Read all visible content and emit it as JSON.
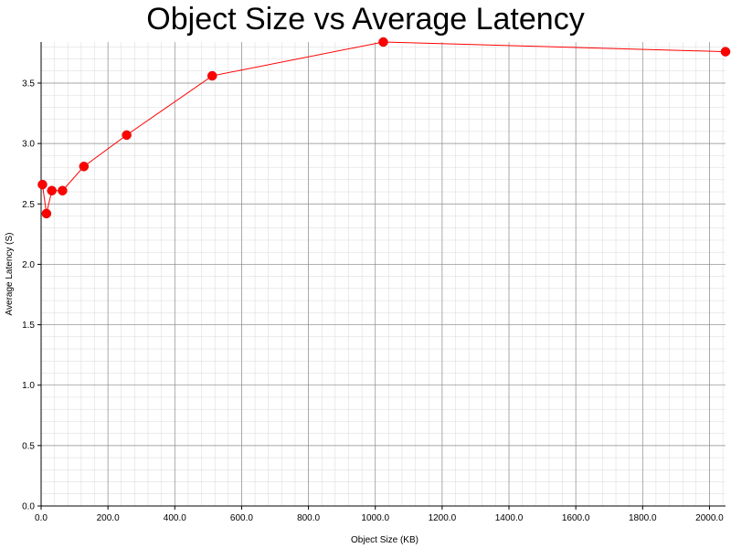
{
  "chart_data": {
    "type": "line",
    "title": "Object Size vs Average Latency",
    "xlabel": "Object Size (KB)",
    "ylabel": "Average Latency (S)",
    "xlim": [
      0,
      2048
    ],
    "ylim": [
      0,
      3.84
    ],
    "x_ticks": [
      "0.0",
      "200.0",
      "400.0",
      "600.0",
      "800.0",
      "1000.0",
      "1200.0",
      "1400.0",
      "1600.0",
      "1800.0",
      "2000.0"
    ],
    "y_ticks": [
      "0.0",
      "0.5",
      "1.0",
      "1.5",
      "2.0",
      "2.5",
      "3.0",
      "3.5"
    ],
    "grid": true,
    "legend": "none",
    "series": [
      {
        "color": "#ff0000",
        "x": [
          4,
          16,
          32,
          64,
          128,
          256,
          512,
          1024,
          2048
        ],
        "y": [
          2.66,
          2.42,
          2.61,
          2.61,
          2.81,
          3.07,
          3.56,
          3.84,
          3.76
        ]
      }
    ]
  }
}
